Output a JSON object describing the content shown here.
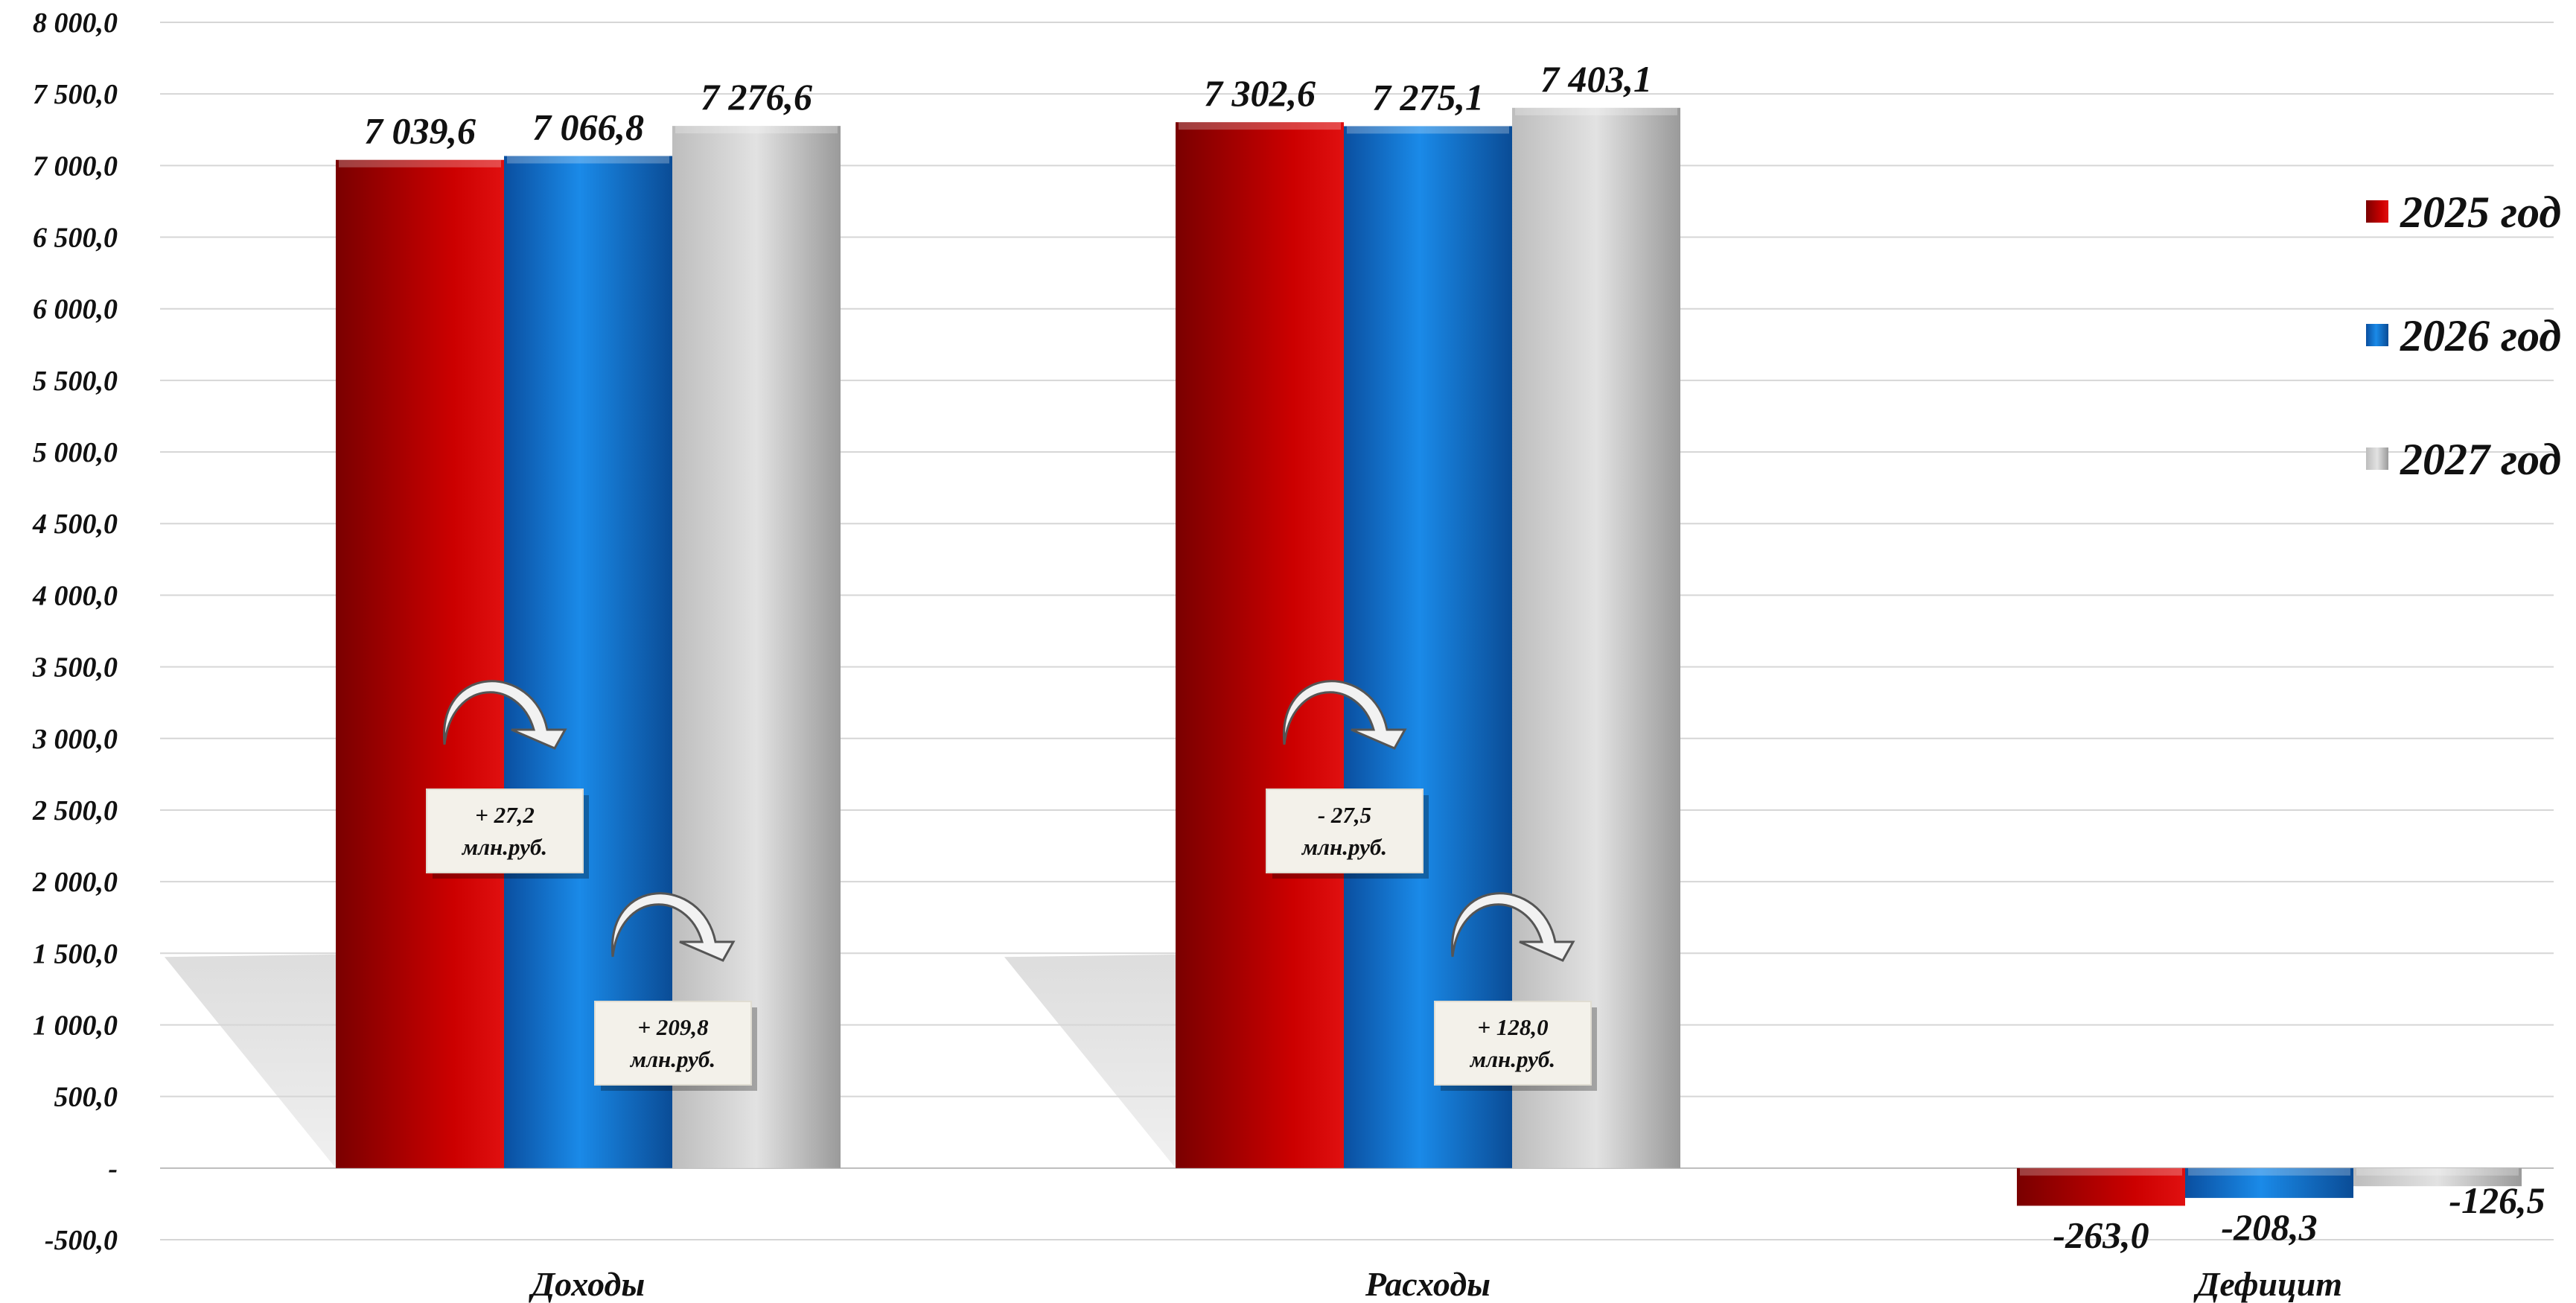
{
  "chart_data": {
    "type": "bar",
    "categories": [
      "Доходы",
      "Расходы",
      "Дефицит"
    ],
    "series": [
      {
        "name": "2025 год",
        "values": [
          7039.6,
          7302.6,
          -263.0
        ],
        "labels": [
          "7 039,6",
          "7 302,6",
          "-263,0"
        ],
        "color": "#cc0000"
      },
      {
        "name": "2026 год",
        "values": [
          7066.8,
          7275.1,
          -208.3
        ],
        "labels": [
          "7 066,8",
          "7 275,1",
          "-208,3"
        ],
        "color": "#0a6fc9"
      },
      {
        "name": "2027 год",
        "values": [
          7276.6,
          7403.1,
          -126.5
        ],
        "labels": [
          "7 276,6",
          "7 403,1",
          "-126,5"
        ],
        "color": "#c8c8c8"
      }
    ],
    "ylim": [
      -500,
      8000
    ],
    "yticks": [
      {
        "value": 8000,
        "label": "8 000,0"
      },
      {
        "value": 7500,
        "label": "7 500,0"
      },
      {
        "value": 7000,
        "label": "7 000,0"
      },
      {
        "value": 6500,
        "label": "6 500,0"
      },
      {
        "value": 6000,
        "label": "6 000,0"
      },
      {
        "value": 5500,
        "label": "5 500,0"
      },
      {
        "value": 5000,
        "label": "5 000,0"
      },
      {
        "value": 4500,
        "label": "4 500,0"
      },
      {
        "value": 4000,
        "label": "4 000,0"
      },
      {
        "value": 3500,
        "label": "3 500,0"
      },
      {
        "value": 3000,
        "label": "3 000,0"
      },
      {
        "value": 2500,
        "label": "2 500,0"
      },
      {
        "value": 2000,
        "label": "2 000,0"
      },
      {
        "value": 1500,
        "label": "1 500,0"
      },
      {
        "value": 1000,
        "label": "1 000,0"
      },
      {
        "value": 500,
        "label": "500,0"
      },
      {
        "value": 0,
        "label": "-"
      },
      {
        "value": -500,
        "label": "-500,0"
      }
    ],
    "grid": true,
    "legend": "right",
    "annotations": [
      {
        "category": 0,
        "between": [
          0,
          1
        ],
        "line1": "+ 27,2",
        "line2": "млн.руб."
      },
      {
        "category": 0,
        "between": [
          1,
          2
        ],
        "line1": "+ 209,8",
        "line2": "млн.руб."
      },
      {
        "category": 1,
        "between": [
          0,
          1
        ],
        "line1": "- 27,5",
        "line2": "млн.руб."
      },
      {
        "category": 1,
        "between": [
          1,
          2
        ],
        "line1": "+ 128,0",
        "line2": "млн.руб."
      }
    ]
  }
}
